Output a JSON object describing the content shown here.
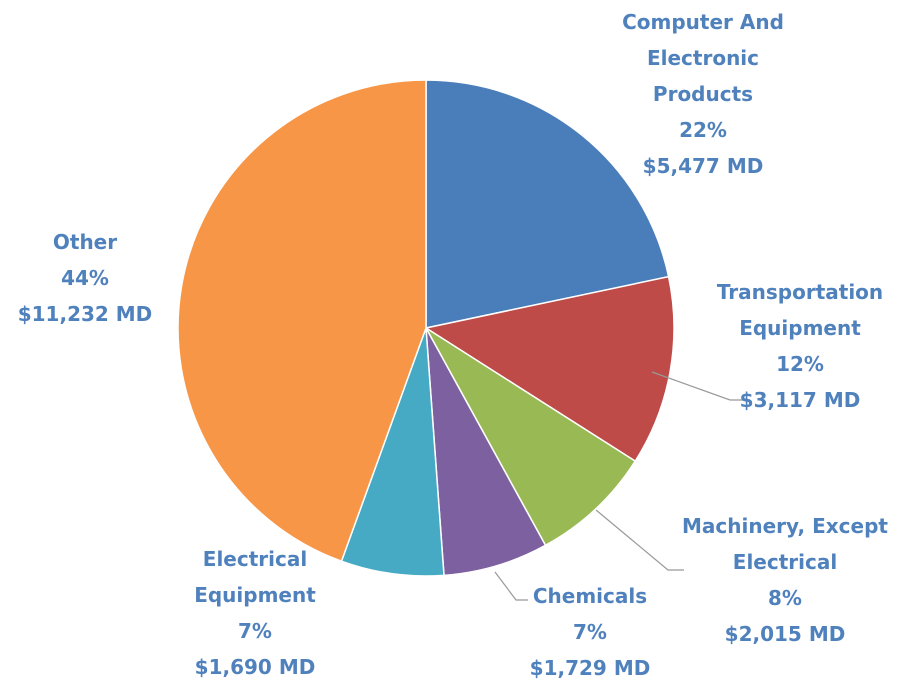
{
  "chart_data": {
    "type": "pie",
    "categories": [
      "Computer And Electronic Products",
      "Transportation Equipment",
      "Machinery, Except Electrical",
      "Chemicals",
      "Electrical Equipment",
      "Other"
    ],
    "values": [
      5477,
      3117,
      2015,
      1729,
      1690,
      11232
    ],
    "value_labels": [
      "$5,477 MD",
      "$3,117 MD",
      "$2,015 MD",
      "$1,729 MD",
      "$1,690 MD",
      "$11,232 MD"
    ],
    "percent_labels": [
      "22%",
      "12%",
      "8%",
      "7%",
      "7%",
      "44%"
    ],
    "colors": [
      "#4a7ebb",
      "#be4b48",
      "#98b954",
      "#7d60a0",
      "#46aac5",
      "#f79646"
    ]
  }
}
